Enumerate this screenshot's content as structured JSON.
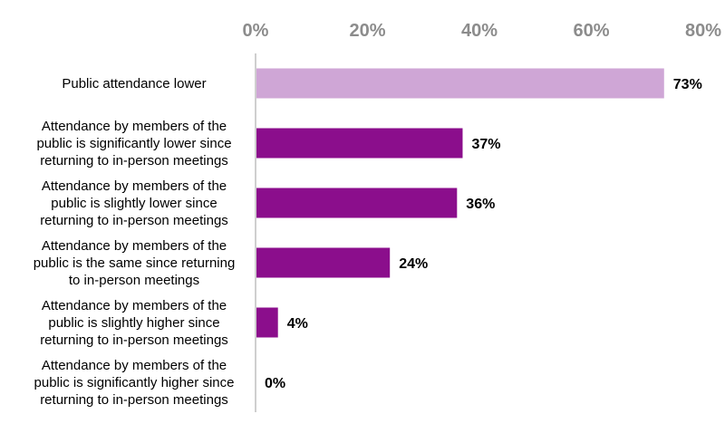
{
  "chart_data": {
    "type": "bar",
    "orientation": "horizontal",
    "title": "",
    "xlabel": "",
    "ylabel": "",
    "xlim": [
      0,
      80
    ],
    "x_ticks": [
      "0%",
      "20%",
      "40%",
      "60%",
      "80%"
    ],
    "tick_values": [
      0,
      20,
      40,
      60,
      80
    ],
    "axis_position": "top",
    "grid": false,
    "legend": "none",
    "categories": [
      [
        "Public attendance lower"
      ],
      [
        "Attendance by members of the",
        "public is significantly lower since",
        "returning to in-person meetings"
      ],
      [
        "Attendance by members of the",
        "public is slightly lower since",
        "returning to in-person meetings"
      ],
      [
        "Attendance by members of the",
        "public is the same since returning",
        "to in-person meetings"
      ],
      [
        "Attendance by members of the",
        "public is slightly higher since",
        "returning to in-person meetings"
      ],
      [
        "Attendance by members of the",
        "public is significantly higher since",
        "returning to in-person meetings"
      ]
    ],
    "values": [
      73,
      37,
      36,
      24,
      4,
      0
    ],
    "data_labels": [
      "73%",
      "37%",
      "36%",
      "24%",
      "4%",
      "0%"
    ],
    "colors": [
      "#cfa6d6",
      "#8b0e8c",
      "#8b0e8c",
      "#8b0e8c",
      "#8b0e8c",
      "#8b0e8c"
    ],
    "axis_color": "#bfbfbf"
  }
}
